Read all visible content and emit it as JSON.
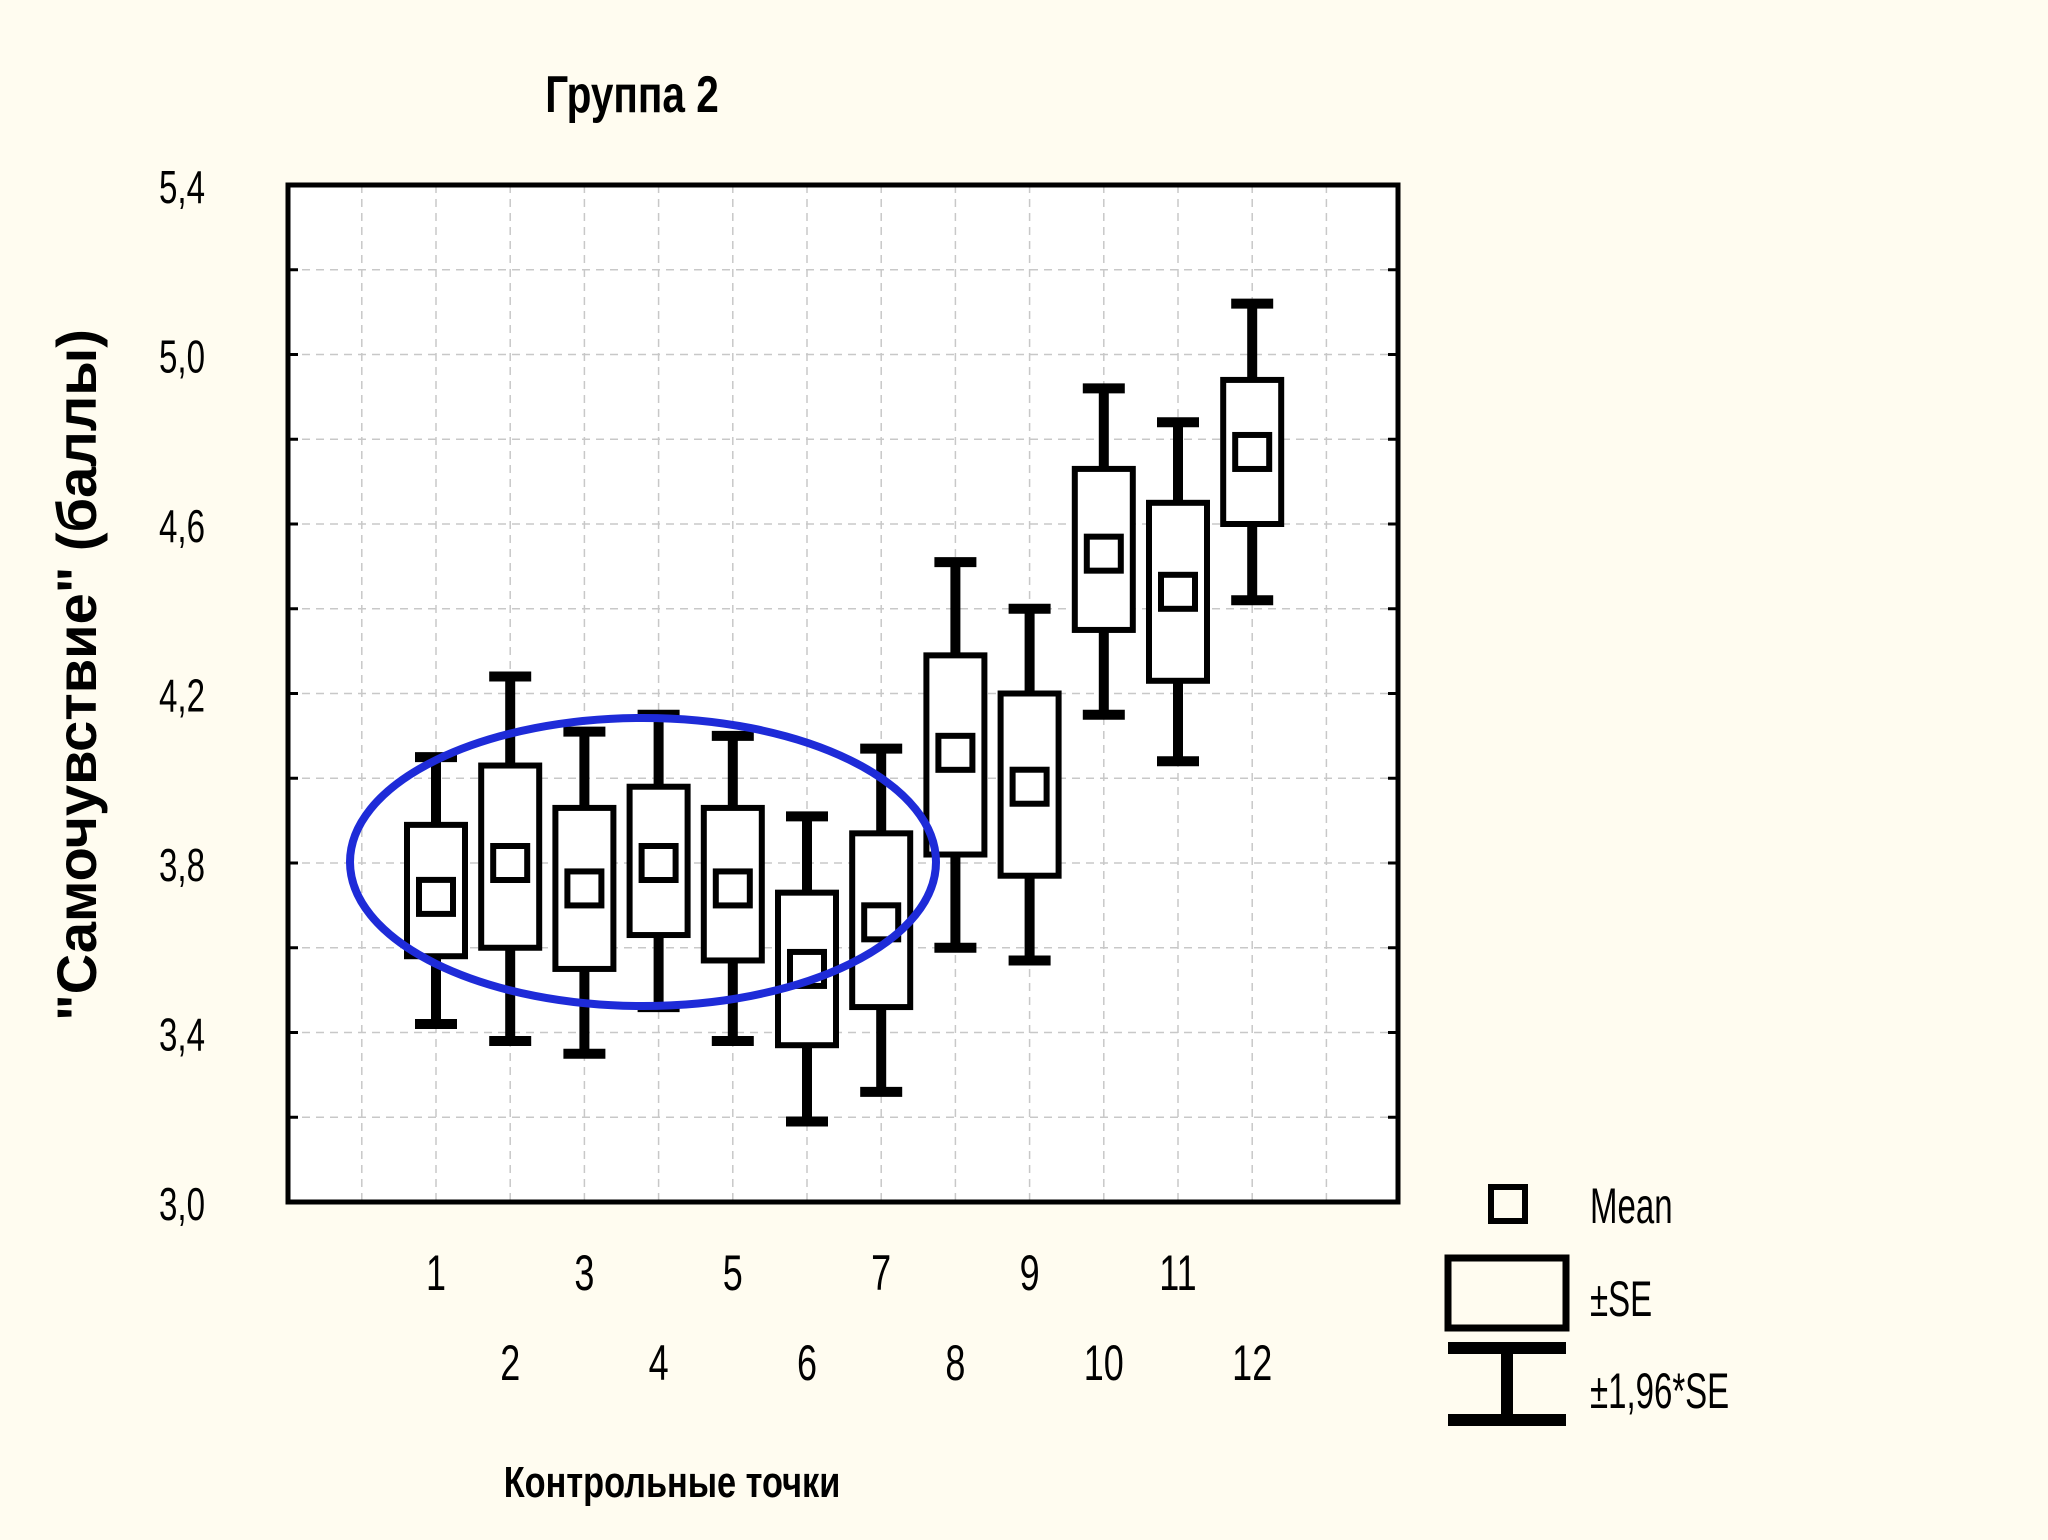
{
  "chart_data": {
    "type": "box",
    "title": "Группа 2",
    "xlabel": "Контрольные точки",
    "ylabel": "\"Самочувствие\" (баллы)",
    "ylim": [
      3.0,
      5.4
    ],
    "yticks": [
      "3,0",
      "3,4",
      "3,8",
      "4,2",
      "4,6",
      "5,0",
      "5,4"
    ],
    "grid": true,
    "categories": [
      "1",
      "2",
      "3",
      "4",
      "5",
      "6",
      "7",
      "8",
      "9",
      "10",
      "11",
      "12"
    ],
    "points": [
      {
        "x": "1",
        "mean": 3.72,
        "se_low": 3.58,
        "se_high": 3.89,
        "ci_low": 3.42,
        "ci_high": 4.05
      },
      {
        "x": "2",
        "mean": 3.8,
        "se_low": 3.6,
        "se_high": 4.03,
        "ci_low": 3.38,
        "ci_high": 4.24
      },
      {
        "x": "3",
        "mean": 3.74,
        "se_low": 3.55,
        "se_high": 3.93,
        "ci_low": 3.35,
        "ci_high": 4.11
      },
      {
        "x": "4",
        "mean": 3.8,
        "se_low": 3.63,
        "se_high": 3.98,
        "ci_low": 3.46,
        "ci_high": 4.15
      },
      {
        "x": "5",
        "mean": 3.74,
        "se_low": 3.57,
        "se_high": 3.93,
        "ci_low": 3.38,
        "ci_high": 4.1
      },
      {
        "x": "6",
        "mean": 3.55,
        "se_low": 3.37,
        "se_high": 3.73,
        "ci_low": 3.19,
        "ci_high": 3.91
      },
      {
        "x": "7",
        "mean": 3.66,
        "se_low": 3.46,
        "se_high": 3.87,
        "ci_low": 3.26,
        "ci_high": 4.07
      },
      {
        "x": "8",
        "mean": 4.06,
        "se_low": 3.82,
        "se_high": 4.29,
        "ci_low": 3.6,
        "ci_high": 4.51
      },
      {
        "x": "9",
        "mean": 3.98,
        "se_low": 3.77,
        "se_high": 4.2,
        "ci_low": 3.57,
        "ci_high": 4.4
      },
      {
        "x": "10",
        "mean": 4.53,
        "se_low": 4.35,
        "se_high": 4.73,
        "ci_low": 4.15,
        "ci_high": 4.92
      },
      {
        "x": "11",
        "mean": 4.44,
        "se_low": 4.23,
        "se_high": 4.65,
        "ci_low": 4.04,
        "ci_high": 4.84
      },
      {
        "x": "12",
        "mean": 4.77,
        "se_low": 4.6,
        "se_high": 4.94,
        "ci_low": 4.42,
        "ci_high": 5.12
      }
    ],
    "legend": {
      "position": "bottom-right",
      "entries": [
        {
          "marker": "small-square",
          "label": "Mean"
        },
        {
          "marker": "box",
          "label": "±SE"
        },
        {
          "marker": "whisker",
          "label": "±1,96*SE"
        }
      ]
    },
    "annotation": {
      "shape": "ellipse",
      "color": "#1e2bd8",
      "covers": [
        "1",
        "2",
        "3",
        "4",
        "5",
        "6",
        "7"
      ]
    }
  },
  "colors": {
    "background": "#fffcf0",
    "plot": "#ffffff",
    "ink": "#000000",
    "ellipse": "#1e2bd8",
    "grid": "#c8c8c8"
  }
}
